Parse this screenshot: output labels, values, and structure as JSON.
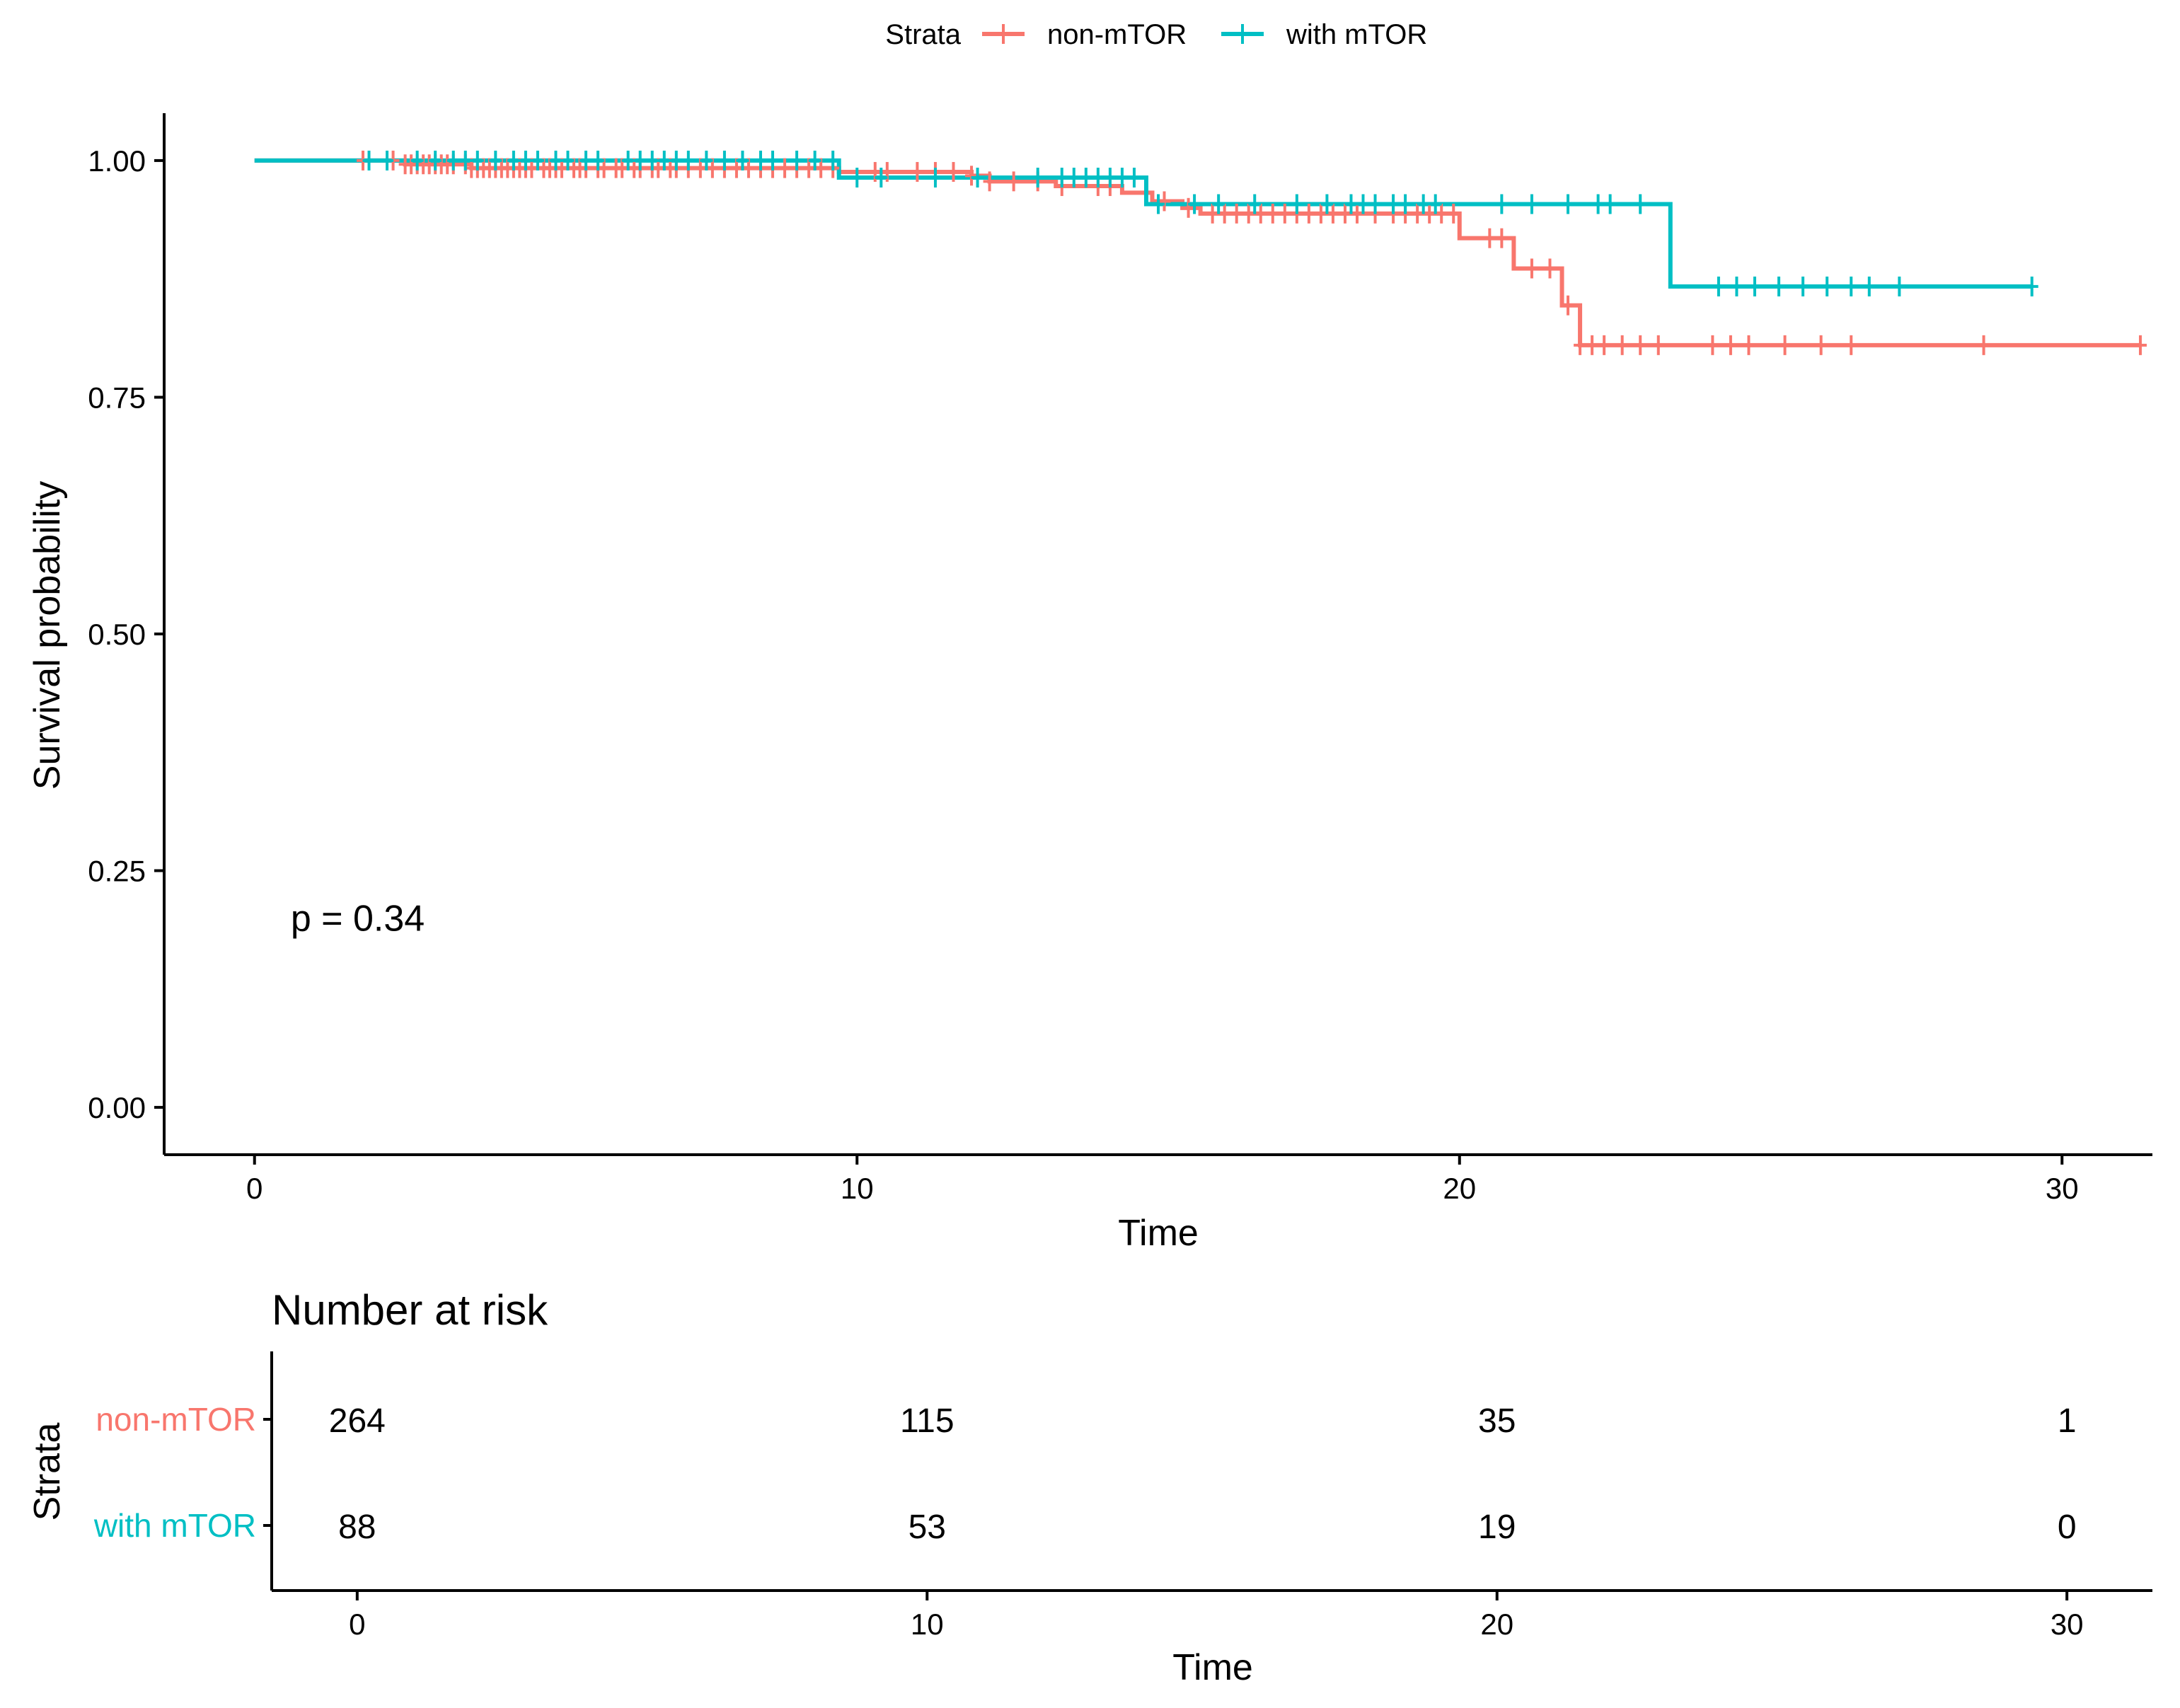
{
  "chart_data": [
    {
      "type": "line",
      "subtype": "kaplan-meier",
      "title": "",
      "xlabel": "Time",
      "ylabel": "Survival probability",
      "xlim": [
        -1.5,
        31.5
      ],
      "ylim": [
        -0.05,
        1.05
      ],
      "x_ticks": [
        0,
        10,
        20,
        30
      ],
      "x_tick_labels": [
        "0",
        "10",
        "20",
        "30"
      ],
      "y_ticks": [
        0,
        0.25,
        0.5,
        0.75,
        1.0
      ],
      "y_tick_labels": [
        "0.00",
        "0.25",
        "0.50",
        "0.75",
        "1.00"
      ],
      "grid": false,
      "annotation": "p = 0.34",
      "annotation_position": {
        "x": 0.6,
        "y": 0.2
      },
      "legend": {
        "title": "Strata",
        "placement": "top",
        "entries": [
          "non-mTOR",
          "with mTOR"
        ]
      },
      "series": [
        {
          "name": "non-mTOR",
          "color": "#F8766D",
          "steps": [
            [
              0,
              1.0
            ],
            [
              2.5,
              0.996
            ],
            [
              3.6,
              0.992
            ],
            [
              9.7,
              0.988
            ],
            [
              11.9,
              0.984
            ],
            [
              12.2,
              0.978
            ],
            [
              13.3,
              0.973
            ],
            [
              14.4,
              0.966
            ],
            [
              14.9,
              0.957
            ],
            [
              15.4,
              0.95
            ],
            [
              15.7,
              0.944
            ],
            [
              20.0,
              0.918
            ],
            [
              20.9,
              0.886
            ],
            [
              21.7,
              0.847
            ],
            [
              22.0,
              0.805
            ],
            [
              31.3,
              0.805
            ]
          ],
          "censor_times": [
            1.8,
            2.3,
            2.5,
            2.6,
            2.7,
            2.8,
            2.9,
            3.0,
            3.1,
            3.2,
            3.3,
            3.5,
            3.6,
            3.7,
            3.8,
            3.9,
            4.0,
            4.1,
            4.2,
            4.3,
            4.4,
            4.5,
            4.6,
            4.8,
            4.9,
            5.0,
            5.1,
            5.3,
            5.4,
            5.5,
            5.7,
            5.8,
            6.0,
            6.1,
            6.3,
            6.4,
            6.6,
            6.7,
            6.9,
            7.0,
            7.2,
            7.4,
            7.6,
            7.8,
            8.0,
            8.2,
            8.4,
            8.6,
            8.8,
            9.0,
            9.2,
            9.4,
            9.6,
            10.3,
            10.5,
            11.0,
            11.3,
            11.6,
            11.9,
            12.2,
            12.6,
            13.0,
            13.4,
            14.0,
            14.2,
            15.1,
            15.5,
            15.9,
            16.1,
            16.3,
            16.5,
            16.7,
            16.9,
            17.1,
            17.3,
            17.5,
            17.7,
            17.9,
            18.1,
            18.3,
            18.6,
            18.9,
            19.1,
            19.3,
            19.5,
            19.7,
            19.9,
            20.5,
            20.7,
            21.2,
            21.5,
            21.8,
            22.0,
            22.2,
            22.4,
            22.7,
            23.0,
            23.3,
            24.2,
            24.5,
            24.8,
            25.4,
            26.0,
            26.5,
            28.7,
            31.3
          ]
        },
        {
          "name": "with mTOR",
          "color": "#00BFC4",
          "steps": [
            [
              0,
              1.0
            ],
            [
              9.7,
              0.982
            ],
            [
              14.8,
              0.954
            ],
            [
              23.5,
              0.867
            ],
            [
              29.5,
              0.867
            ]
          ],
          "censor_times": [
            1.9,
            2.2,
            2.7,
            3.0,
            3.3,
            3.5,
            3.7,
            4.0,
            4.3,
            4.5,
            4.7,
            5.0,
            5.2,
            5.5,
            5.7,
            6.2,
            6.4,
            6.6,
            6.8,
            7.0,
            7.2,
            7.5,
            7.8,
            8.1,
            8.4,
            8.6,
            9.0,
            9.3,
            9.6,
            10.0,
            10.4,
            11.3,
            12.0,
            13.0,
            13.4,
            13.6,
            13.8,
            14.0,
            14.2,
            14.4,
            14.6,
            15.0,
            15.6,
            16.0,
            16.6,
            17.3,
            17.8,
            18.2,
            18.4,
            18.6,
            18.9,
            19.1,
            19.4,
            19.6,
            20.7,
            21.2,
            21.8,
            22.3,
            22.5,
            23.0,
            24.3,
            24.6,
            24.9,
            25.3,
            25.7,
            26.1,
            26.5,
            26.8,
            27.3,
            29.5
          ]
        }
      ]
    },
    {
      "type": "table",
      "title": "Number at risk",
      "xlabel": "Time",
      "ylabel": "Strata",
      "xlim": [
        -1.5,
        31.5
      ],
      "x_ticks": [
        0,
        10,
        20,
        30
      ],
      "x_tick_labels": [
        "0",
        "10",
        "20",
        "30"
      ],
      "rows": [
        {
          "label": "non-mTOR",
          "color": "#F8766D",
          "times": [
            0,
            10,
            20,
            30
          ],
          "values": [
            "264",
            "115",
            "35",
            "1"
          ]
        },
        {
          "label": "with mTOR",
          "color": "#00BFC4",
          "times": [
            0,
            10,
            20,
            30
          ],
          "values": [
            "88",
            "53",
            "19",
            "0"
          ]
        }
      ]
    }
  ]
}
